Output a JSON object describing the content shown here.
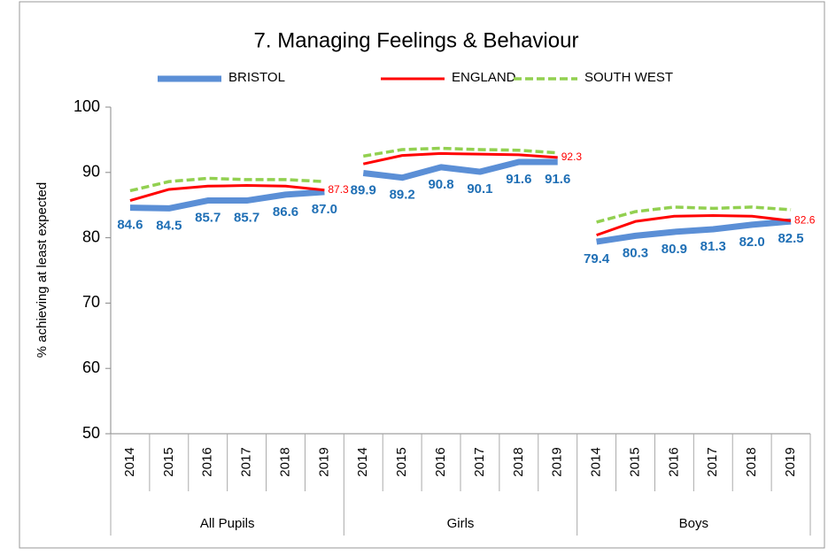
{
  "chart_data": {
    "type": "line",
    "title": "7. Managing Feelings & Behaviour",
    "y_label": "% achieving at least expected",
    "groups": [
      "All Pupils",
      "Girls",
      "Boys"
    ],
    "categories": [
      "2014",
      "2015",
      "2016",
      "2017",
      "2018",
      "2019",
      "2014",
      "2015",
      "2016",
      "2017",
      "2018",
      "2019",
      "2014",
      "2015",
      "2016",
      "2017",
      "2018",
      "2019"
    ],
    "series": [
      {
        "name": "BRISTOL",
        "color": "#5b8fd6",
        "style": "thick",
        "values": [
          84.6,
          84.5,
          85.7,
          85.7,
          86.6,
          87.0,
          89.9,
          89.2,
          90.8,
          90.1,
          91.6,
          91.6,
          79.4,
          80.3,
          80.9,
          81.3,
          82.0,
          82.5
        ],
        "value_labels": [
          "84.6",
          "84.5",
          "85.7",
          "85.7",
          "86.6",
          "87.0",
          "89.9",
          "89.2",
          "90.8",
          "90.1",
          "91.6",
          "91.6",
          "79.4",
          "80.3",
          "80.9",
          "81.3",
          "82.0",
          "82.5"
        ]
      },
      {
        "name": "ENGLAND",
        "color": "#ff0000",
        "style": "solid",
        "values": [
          85.7,
          87.4,
          87.9,
          88.0,
          87.9,
          87.3,
          91.3,
          92.6,
          92.9,
          92.8,
          92.7,
          92.3,
          80.4,
          82.5,
          83.3,
          83.4,
          83.3,
          82.6
        ],
        "value_labels": [
          null,
          null,
          null,
          null,
          null,
          "87.3",
          null,
          null,
          null,
          null,
          null,
          "92.3",
          null,
          null,
          null,
          null,
          null,
          "82.6"
        ]
      },
      {
        "name": "SOUTH WEST",
        "color": "#92d050",
        "style": "dashed",
        "values": [
          87.2,
          88.6,
          89.1,
          88.9,
          88.9,
          88.6,
          92.5,
          93.5,
          93.7,
          93.5,
          93.4,
          93.0,
          82.4,
          84.0,
          84.7,
          84.5,
          84.7,
          84.3
        ]
      }
    ],
    "ylim": [
      50,
      100
    ],
    "yticks": [
      50,
      60,
      70,
      80,
      90,
      100
    ],
    "legend": "top",
    "grid": false
  }
}
